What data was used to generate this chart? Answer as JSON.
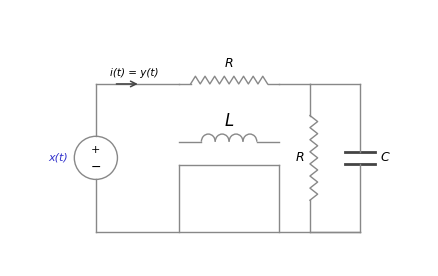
{
  "bg_color": "#ffffff",
  "line_color": "#888888",
  "text_color": "#000000",
  "label_xt": "x(t)",
  "label_it": "i(t) = y(t)",
  "label_R_top": "R",
  "label_L": "L",
  "label_R_right": "R",
  "label_C": "C",
  "plus_sign": "+",
  "minus_sign": "−",
  "fig_width": 4.38,
  "fig_height": 2.76,
  "dpi": 100
}
